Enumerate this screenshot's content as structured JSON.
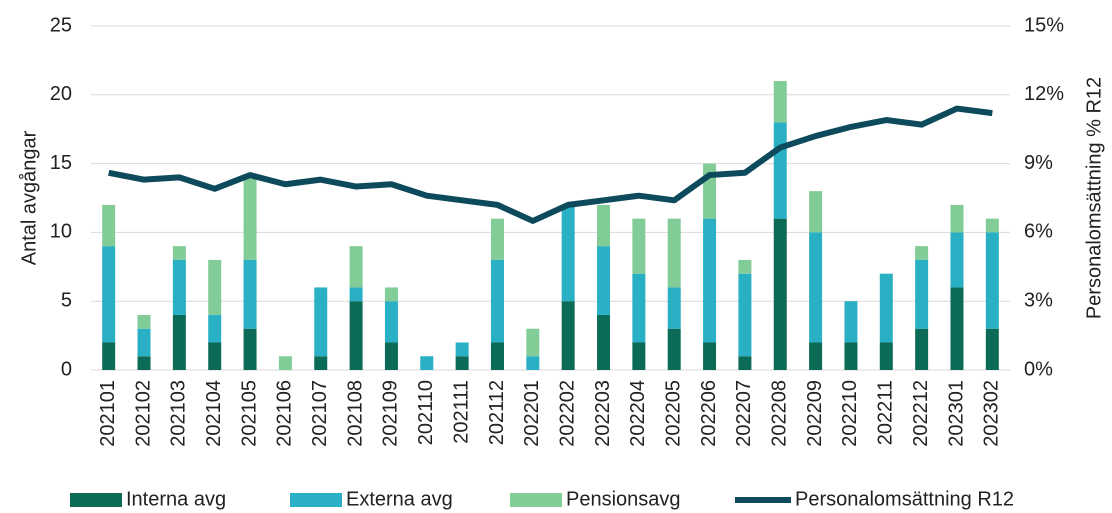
{
  "chart_data": {
    "type": "bar",
    "stacked": true,
    "categories": [
      "202101",
      "202102",
      "202103",
      "202104",
      "202105",
      "202106",
      "202107",
      "202108",
      "202109",
      "202110",
      "202111",
      "202112",
      "202201",
      "202202",
      "202203",
      "202204",
      "202205",
      "202206",
      "202207",
      "202208",
      "202209",
      "202210",
      "202211",
      "202212",
      "202301",
      "202302"
    ],
    "series": [
      {
        "name": "Interna avg",
        "color": "#0b6b57",
        "values": [
          2,
          1,
          4,
          2,
          3,
          0,
          1,
          5,
          2,
          0,
          1,
          2,
          0,
          5,
          4,
          2,
          3,
          2,
          1,
          11,
          2,
          2,
          2,
          3,
          6,
          3
        ]
      },
      {
        "name": "Externa avg",
        "color": "#2ab0c5",
        "values": [
          7,
          2,
          4,
          2,
          5,
          0,
          5,
          1,
          3,
          1,
          1,
          6,
          1,
          7,
          5,
          5,
          3,
          9,
          6,
          7,
          8,
          3,
          5,
          5,
          4,
          7
        ]
      },
      {
        "name": "Pensionsavg",
        "color": "#82cc98",
        "values": [
          3,
          1,
          1,
          4,
          6,
          1,
          0,
          3,
          1,
          0,
          0,
          3,
          2,
          0,
          3,
          4,
          5,
          4,
          1,
          3,
          3,
          0,
          0,
          1,
          2,
          1
        ]
      },
      {
        "name": "Personalomsättning R12",
        "color": "#0d4a5c",
        "type": "line",
        "axis": "y2",
        "values": [
          8.6,
          8.3,
          8.4,
          7.9,
          8.5,
          8.1,
          8.3,
          8.0,
          8.1,
          7.6,
          7.4,
          7.2,
          6.5,
          7.2,
          7.4,
          7.6,
          7.4,
          8.5,
          8.6,
          9.7,
          10.2,
          10.6,
          10.9,
          10.7,
          11.4,
          11.2
        ]
      }
    ],
    "ylabel": "Antal avgångar",
    "y2label": "Personalomsättning % R12",
    "ylim": [
      0,
      25
    ],
    "yticks": [
      0,
      5,
      10,
      15,
      20,
      25
    ],
    "y2lim": [
      0,
      15
    ],
    "y2ticks": [
      {
        "value": 0,
        "label": "0%"
      },
      {
        "value": 3,
        "label": "3%"
      },
      {
        "value": 6,
        "label": "6%"
      },
      {
        "value": 9,
        "label": "9%"
      },
      {
        "value": 12,
        "label": "12%"
      },
      {
        "value": 15,
        "label": "15%"
      }
    ],
    "grid": true,
    "legend": "bottom"
  }
}
